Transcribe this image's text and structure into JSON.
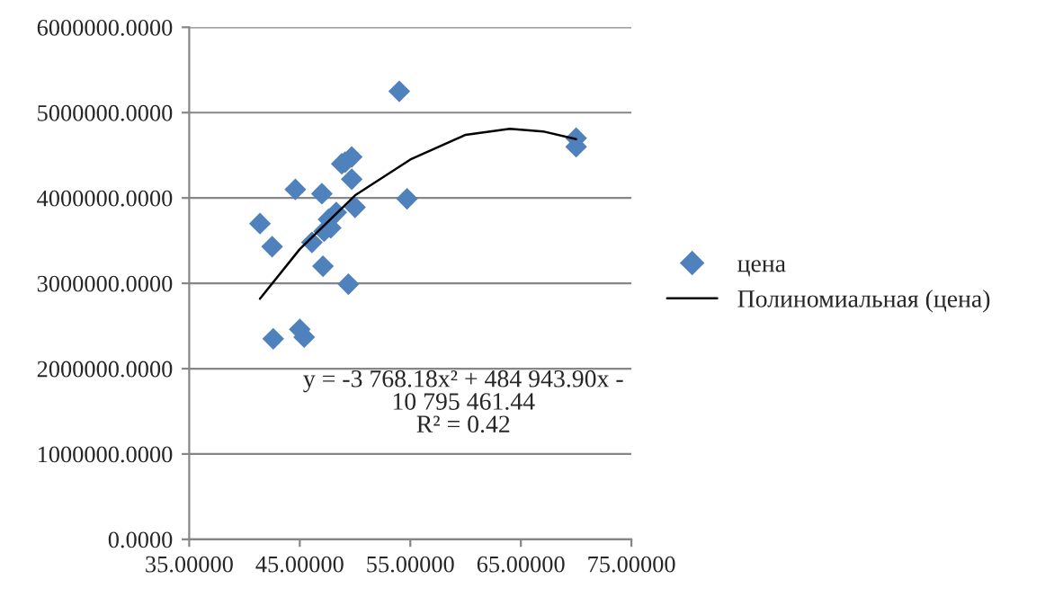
{
  "chart_data": {
    "type": "scatter",
    "xlim": [
      35,
      75
    ],
    "xticks": [
      {
        "value": 35,
        "label": "35.00000"
      },
      {
        "value": 45,
        "label": "45.00000"
      },
      {
        "value": 55,
        "label": "55.00000"
      },
      {
        "value": 65,
        "label": "65.00000"
      },
      {
        "value": 75,
        "label": "75.00000"
      }
    ],
    "ylim": [
      0,
      6000000
    ],
    "yticks": [
      {
        "value": 0,
        "label": "0.0000"
      },
      {
        "value": 1000000,
        "label": "1000000.0000"
      },
      {
        "value": 2000000,
        "label": "2000000.0000"
      },
      {
        "value": 3000000,
        "label": "3000000.0000"
      },
      {
        "value": 4000000,
        "label": "4000000.0000"
      },
      {
        "value": 5000000,
        "label": "5000000.0000"
      },
      {
        "value": 6000000,
        "label": "6000000.0000"
      }
    ],
    "grid": "y",
    "legend": "right",
    "series": [
      {
        "name": "цена",
        "color": "#4f81bd",
        "marker": "diamond",
        "x": [
          54.0,
          41.4,
          42.5,
          44.6,
          47.0,
          42.6,
          45.0,
          45.4,
          47.1,
          49.4,
          46.1,
          47.2,
          47.8,
          47.6,
          48.3,
          48.8,
          49.7,
          49.7,
          50.0,
          54.7,
          49.1,
          70.0,
          70.0
        ],
        "values": [
          5250000,
          3700000,
          3430000,
          4100000,
          4050000,
          2350000,
          2460000,
          2370000,
          3200000,
          2990000,
          3480000,
          3610000,
          3650000,
          3750000,
          3830000,
          4400000,
          4480000,
          4220000,
          3890000,
          3990000,
          4420000,
          4600000,
          4700000
        ]
      },
      {
        "name": "Полиномиальная (цена)",
        "type": "line",
        "color": "#000000",
        "marker": "none",
        "line_style": "solid",
        "x": [
          41.4,
          45,
          50,
          55,
          60,
          64,
          67,
          70
        ],
        "values": [
          2820000,
          3400000,
          4030000,
          4450000,
          4740000,
          4810000,
          4780000,
          4690000
        ]
      }
    ],
    "annotations": [
      "y = -3 768.18x² + 484 943.90x -\n10 795 461.44\nR² = 0.42"
    ]
  }
}
